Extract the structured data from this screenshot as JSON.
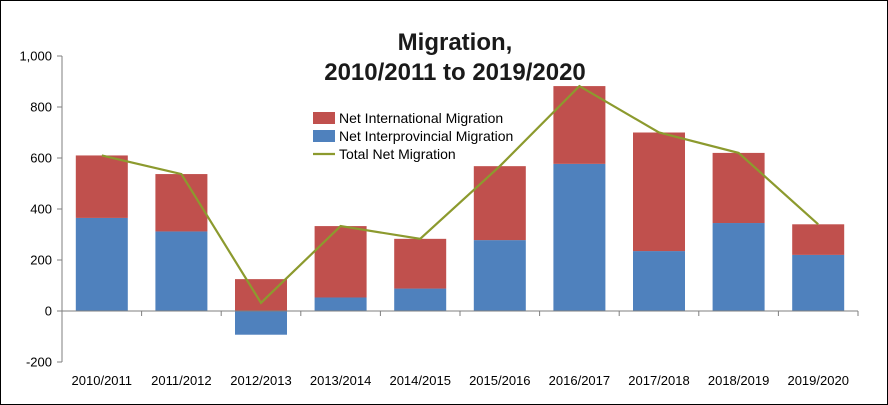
{
  "chart_data": {
    "type": "bar",
    "stacked": true,
    "title": "Migration,\n2010/2011 to 2019/2020",
    "xlabel": "",
    "ylabel": "",
    "ylim": [
      -200,
      1000
    ],
    "yticks": [
      -200,
      0,
      200,
      400,
      600,
      800,
      1000
    ],
    "ytick_labels": [
      "-200",
      "0",
      "200",
      "400",
      "600",
      "800",
      "1,000"
    ],
    "categories": [
      "2010/2011",
      "2011/2012",
      "2012/2013",
      "2013/2014",
      "2014/2015",
      "2015/2016",
      "2016/2017",
      "2017/2018",
      "2018/2019",
      "2019/2020"
    ],
    "series": [
      {
        "name": "Net International Migration",
        "kind": "bar",
        "color": "#c0504d",
        "values": [
          245,
          225,
          125,
          280,
          195,
          290,
          305,
          465,
          275,
          120
        ]
      },
      {
        "name": "Net Interprovincial Migration",
        "kind": "bar",
        "color": "#4f81bd",
        "values": [
          365,
          312,
          -93,
          53,
          88,
          278,
          577,
          235,
          345,
          220
        ]
      },
      {
        "name": "Total Net Migration",
        "kind": "line",
        "color": "#8c9a2e",
        "values": [
          610,
          537,
          32,
          333,
          283,
          568,
          882,
          700,
          620,
          340
        ]
      }
    ],
    "legend_position": "top-center",
    "grid": false
  }
}
